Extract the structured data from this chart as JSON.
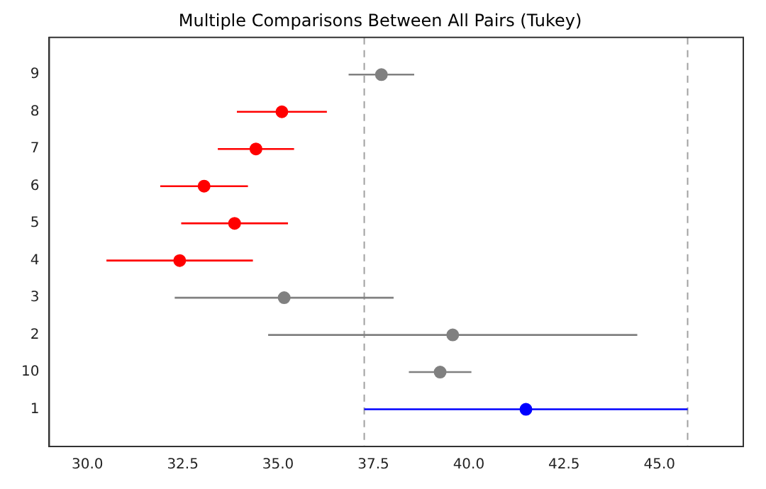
{
  "chart_data": {
    "type": "scatter",
    "orientation": "horizontal",
    "title": "Multiple Comparisons Between All Pairs (Tukey)",
    "categories": [
      "9",
      "8",
      "7",
      "6",
      "5",
      "4",
      "3",
      "2",
      "10",
      "1"
    ],
    "values": [
      37.71,
      35.1,
      34.42,
      33.06,
      33.86,
      32.42,
      35.16,
      39.58,
      39.25,
      41.5
    ],
    "errors": [
      0.86,
      1.18,
      1.0,
      1.15,
      1.4,
      1.92,
      2.87,
      4.84,
      0.82,
      4.24
    ],
    "colors": [
      "#808080",
      "#ff0000",
      "#ff0000",
      "#ff0000",
      "#ff0000",
      "#ff0000",
      "#808080",
      "#808080",
      "#808080",
      "#0000ff"
    ],
    "xlim": [
      29,
      47.2
    ],
    "xticks": [
      {
        "value": 30,
        "label": "30.0"
      },
      {
        "value": 32.5,
        "label": "32.5"
      },
      {
        "value": 35,
        "label": "35.0"
      },
      {
        "value": 37.5,
        "label": "37.5"
      },
      {
        "value": 40,
        "label": "40.0"
      },
      {
        "value": 42.5,
        "label": "42.5"
      },
      {
        "value": 45,
        "label": "45.0"
      }
    ],
    "ref_lines": [
      {
        "axis": "x",
        "value": 37.26,
        "color": "#a0a0a0",
        "line_style": "dashed"
      },
      {
        "axis": "x",
        "value": 45.74,
        "color": "#a0a0a0",
        "line_style": "dashed"
      }
    ],
    "marker": "circle",
    "grid": false,
    "legend": false
  }
}
